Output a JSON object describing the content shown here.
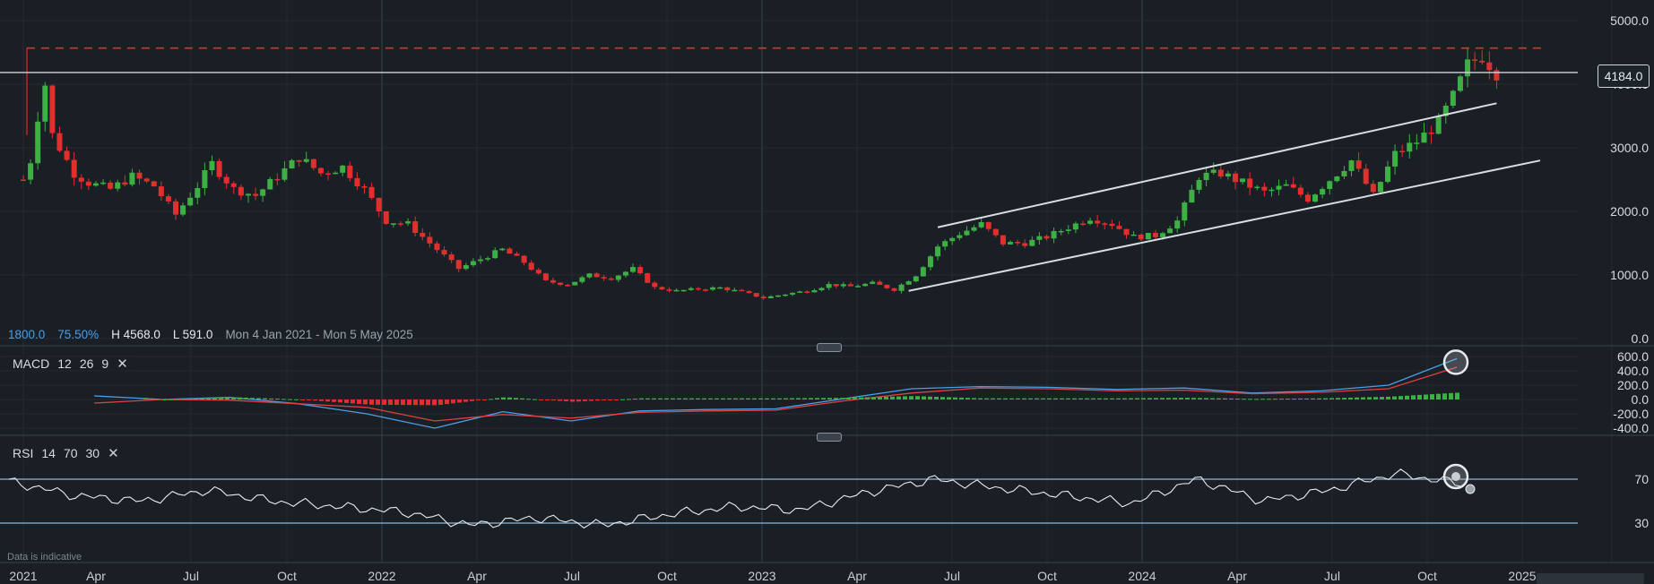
{
  "chart_data": [
    {
      "type": "candlestick",
      "name": "price",
      "y_axis_ticks": [
        "5000.0",
        "4000.0",
        "3000.0",
        "2000.0",
        "1000.0",
        "0.0"
      ],
      "ylim": [
        0,
        5000
      ],
      "x_axis_ticks": [
        "2021",
        "Apr",
        "Jul",
        "Oct",
        "2022",
        "Apr",
        "Jul",
        "Oct",
        "2023",
        "Apr",
        "Jul",
        "Oct",
        "2024",
        "Apr",
        "Jul",
        "Oct",
        "2025"
      ],
      "last_price_label": "4184.0",
      "resistance_level": 4568,
      "current_level": 4184,
      "info": {
        "level": "1800.0",
        "percent": "75.50%",
        "high": "H 4568.0",
        "low": "L 591.0",
        "range": "Mon 4 Jan 2021 - Mon 5 May 2025"
      },
      "path_points": [
        [
          "2021-01-04",
          2500
        ],
        [
          "2021-01-11",
          2800
        ],
        [
          "2021-01-18",
          3500
        ],
        [
          "2021-01-25",
          4000
        ],
        [
          "2021-02-01",
          3200
        ],
        [
          "2021-02-08",
          3000
        ],
        [
          "2021-02-22",
          2600
        ],
        [
          "2021-03-08",
          2450
        ],
        [
          "2021-03-29",
          2350
        ],
        [
          "2021-04-19",
          2550
        ],
        [
          "2021-05-10",
          2400
        ],
        [
          "2021-05-31",
          1950
        ],
        [
          "2021-06-21",
          2400
        ],
        [
          "2021-07-05",
          2750
        ],
        [
          "2021-07-26",
          2350
        ],
        [
          "2021-08-16",
          2250
        ],
        [
          "2021-09-06",
          2550
        ],
        [
          "2021-09-27",
          2850
        ],
        [
          "2021-10-18",
          2600
        ],
        [
          "2021-11-08",
          2700
        ],
        [
          "2021-11-29",
          2350
        ],
        [
          "2021-12-20",
          1850
        ],
        [
          "2022-01-10",
          1800
        ],
        [
          "2022-01-31",
          1500
        ],
        [
          "2022-02-28",
          1100
        ],
        [
          "2022-03-21",
          1250
        ],
        [
          "2022-04-11",
          1400
        ],
        [
          "2022-05-02",
          1200
        ],
        [
          "2022-05-23",
          900
        ],
        [
          "2022-06-13",
          850
        ],
        [
          "2022-07-04",
          1000
        ],
        [
          "2022-07-25",
          950
        ],
        [
          "2022-08-15",
          1100
        ],
        [
          "2022-09-05",
          800
        ],
        [
          "2022-09-26",
          750
        ],
        [
          "2022-10-17",
          780
        ],
        [
          "2022-11-07",
          800
        ],
        [
          "2022-11-28",
          730
        ],
        [
          "2022-12-19",
          640
        ],
        [
          "2023-01-09",
          700
        ],
        [
          "2023-01-30",
          750
        ],
        [
          "2023-02-20",
          850
        ],
        [
          "2023-03-13",
          820
        ],
        [
          "2023-04-03",
          870
        ],
        [
          "2023-04-24",
          770
        ],
        [
          "2023-05-15",
          1000
        ],
        [
          "2023-06-05",
          1450
        ],
        [
          "2023-06-26",
          1650
        ],
        [
          "2023-07-17",
          1800
        ],
        [
          "2023-08-07",
          1500
        ],
        [
          "2023-08-28",
          1500
        ],
        [
          "2023-09-18",
          1600
        ],
        [
          "2023-10-09",
          1750
        ],
        [
          "2023-10-30",
          1900
        ],
        [
          "2023-11-20",
          1800
        ],
        [
          "2023-12-11",
          1600
        ],
        [
          "2024-01-01",
          1620
        ],
        [
          "2024-01-22",
          1850
        ],
        [
          "2024-02-12",
          2550
        ],
        [
          "2024-03-04",
          2600
        ],
        [
          "2024-03-25",
          2450
        ],
        [
          "2024-04-15",
          2300
        ],
        [
          "2024-05-06",
          2400
        ],
        [
          "2024-05-27",
          2200
        ],
        [
          "2024-06-17",
          2500
        ],
        [
          "2024-07-08",
          2800
        ],
        [
          "2024-07-29",
          2250
        ],
        [
          "2024-08-19",
          2900
        ],
        [
          "2024-09-09",
          3100
        ],
        [
          "2024-09-30",
          3400
        ],
        [
          "2024-10-14",
          3800
        ],
        [
          "2024-10-28",
          4300
        ],
        [
          "2024-11-11",
          4450
        ],
        [
          "2024-11-25",
          4184
        ]
      ],
      "channel_upper": [
        [
          "2023-06-05",
          1750
        ],
        [
          "2024-11-25",
          3700
        ]
      ],
      "channel_lower": [
        [
          "2023-05-08",
          750
        ],
        [
          "2025-01-06",
          2800
        ]
      ]
    },
    {
      "type": "line",
      "name": "MACD",
      "label": "MACD",
      "params": [
        "12",
        "26",
        "9"
      ],
      "y_axis_ticks": [
        "600.0",
        "400.0",
        "200.0",
        "0.0",
        "-200.0",
        "-400.0"
      ],
      "ylim": [
        -450,
        650
      ],
      "series": [
        {
          "color": "#4a9fe8",
          "values": [
            50,
            0,
            30,
            -60,
            -200,
            -400,
            -170,
            -300,
            -160,
            -140,
            -130,
            10,
            150,
            180,
            170,
            140,
            160,
            90,
            120,
            200,
            570
          ]
        },
        {
          "color": "#e04040",
          "values": [
            -50,
            0,
            -10,
            -60,
            -110,
            -300,
            -210,
            -260,
            -180,
            -160,
            -150,
            -20,
            90,
            160,
            150,
            120,
            130,
            80,
            100,
            150,
            450
          ]
        }
      ]
    },
    {
      "type": "line",
      "name": "RSI",
      "label": "RSI",
      "params": [
        "14",
        "70",
        "30"
      ],
      "y_axis_ticks": [
        "70",
        "30"
      ],
      "ylim": [
        0,
        100
      ],
      "series": [
        {
          "color": "#e8ecf0",
          "values": [
            68,
            55,
            50,
            60,
            50,
            45,
            40,
            28,
            35,
            28,
            38,
            45,
            42,
            58,
            70,
            62,
            55,
            48,
            70,
            50,
            60,
            75,
            66
          ]
        }
      ]
    }
  ]
}
